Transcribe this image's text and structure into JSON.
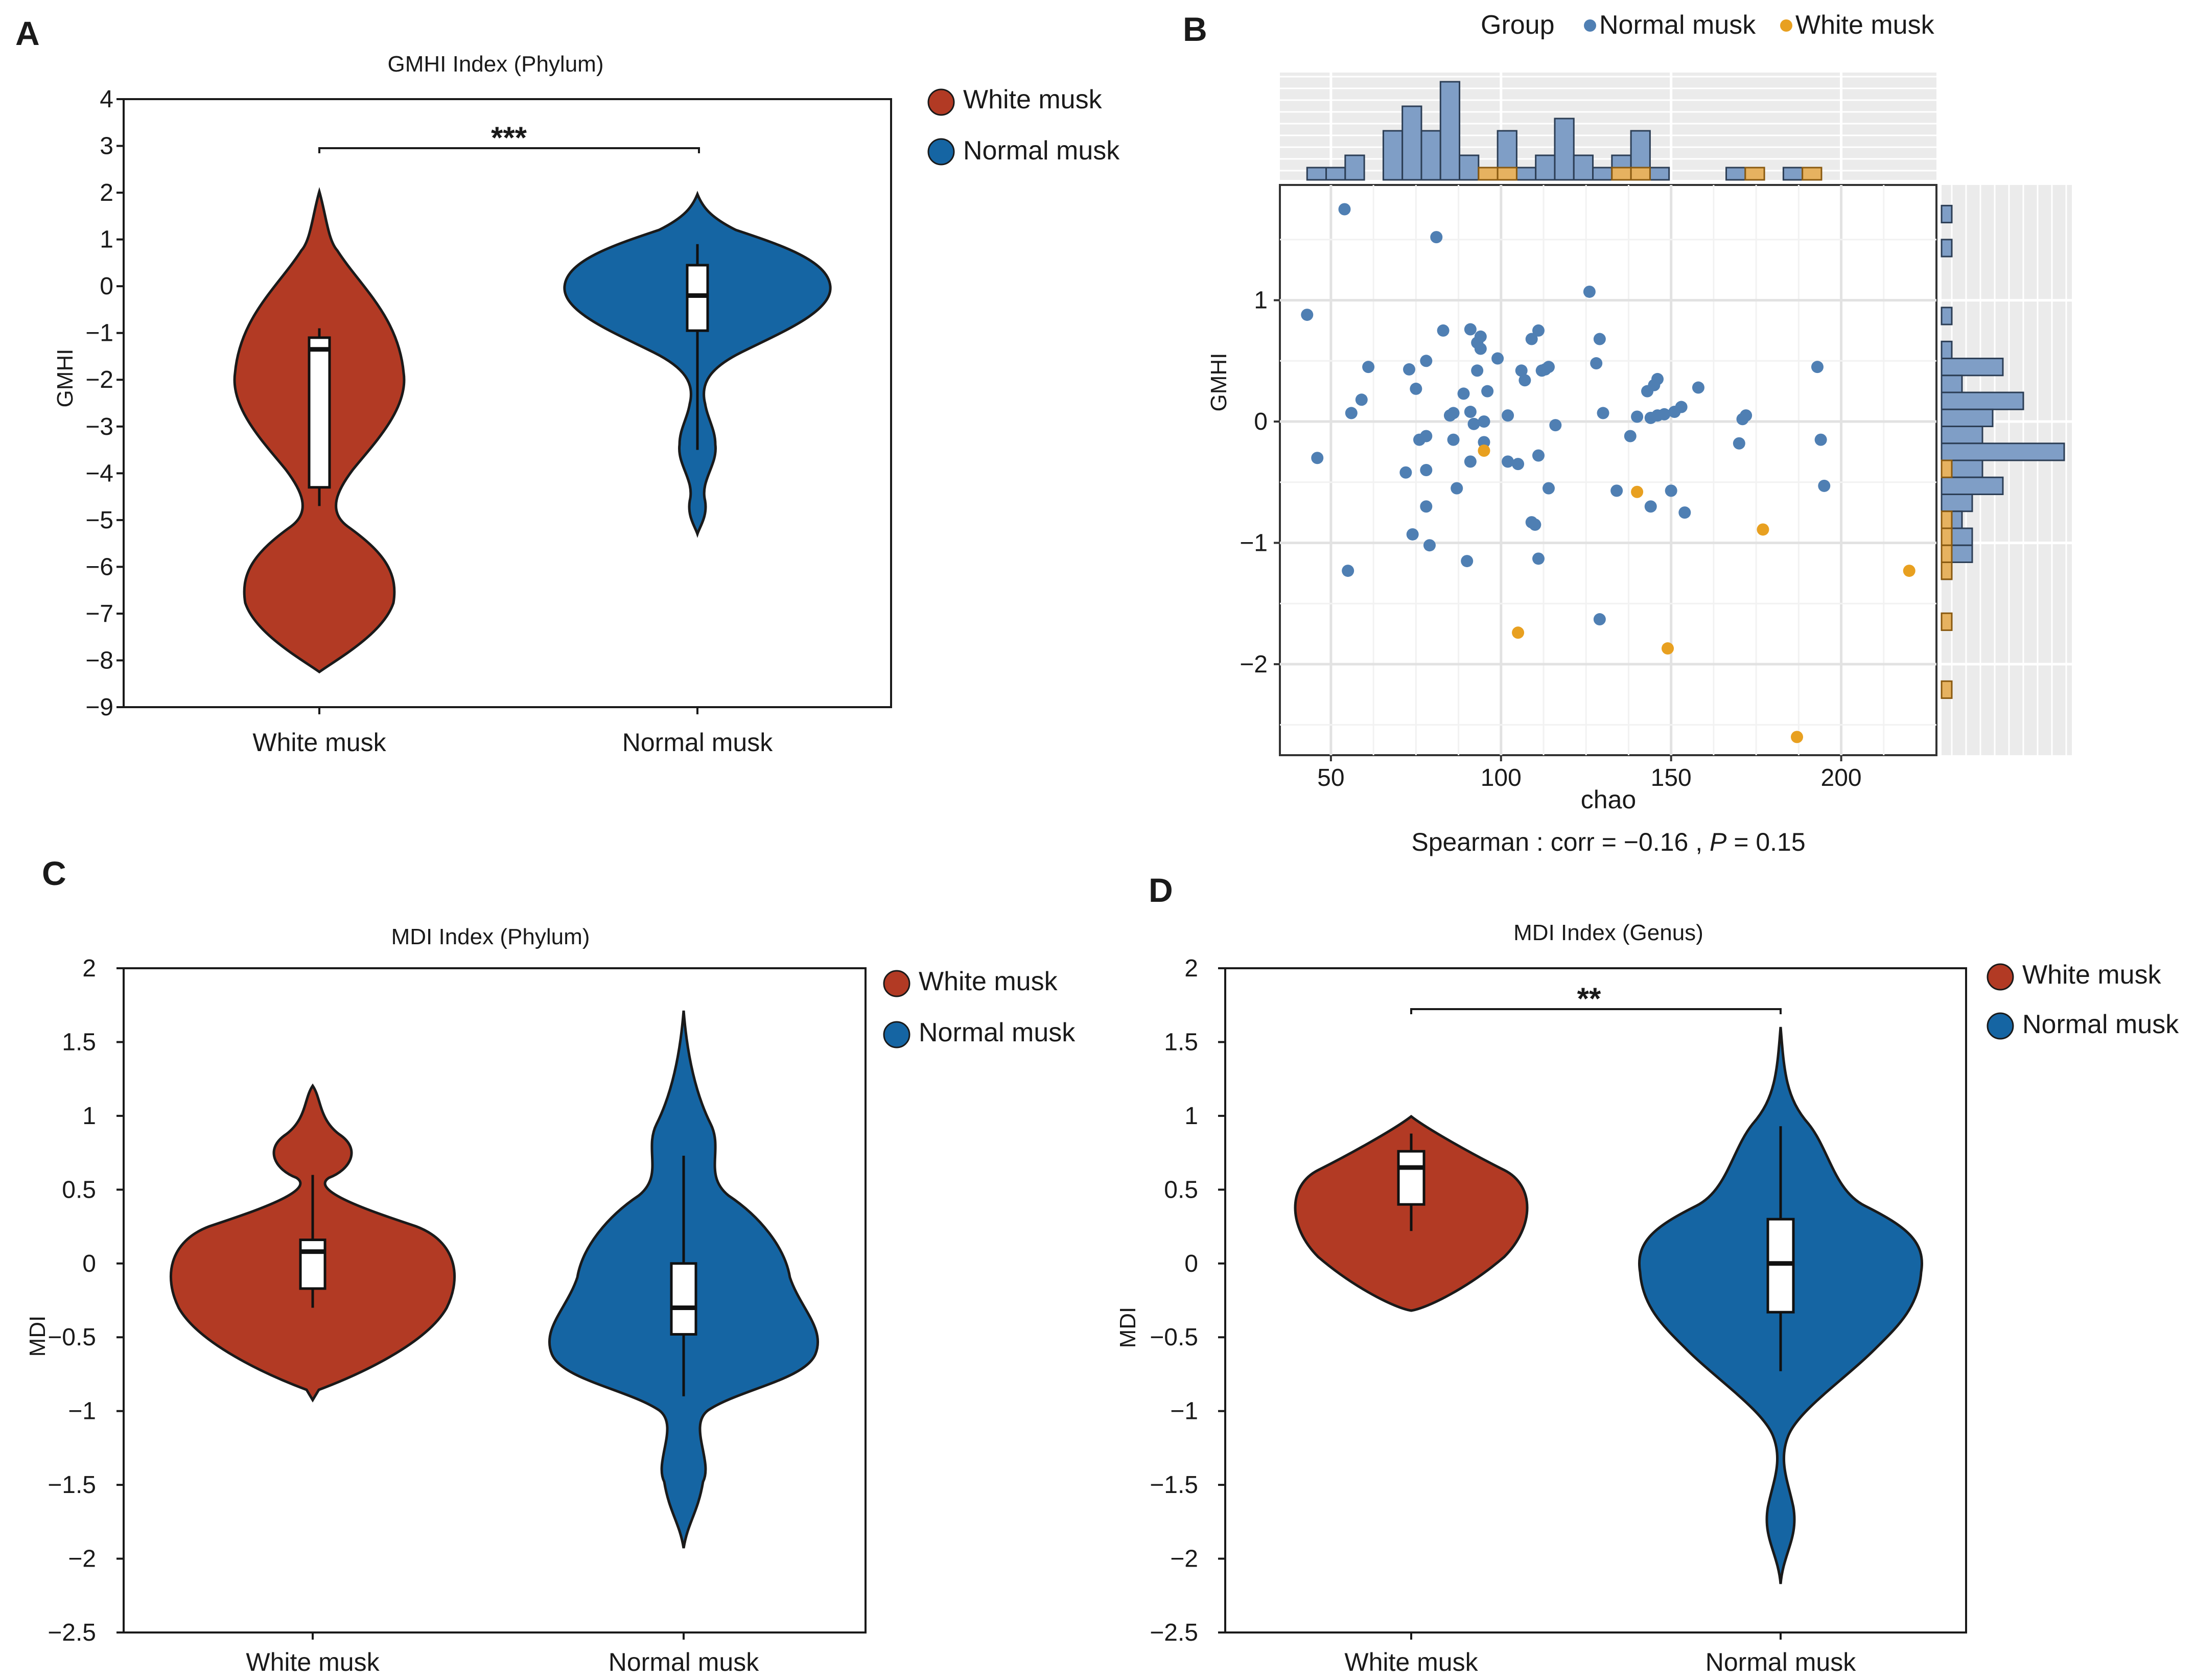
{
  "colors": {
    "white_musk": "#b23a24",
    "normal_musk": "#1565a3",
    "scatter_normal": "#4f7fb3",
    "scatter_white": "#e8a020",
    "hist_normal": "#7f9ec6",
    "hist_white": "#e6b260",
    "grid_bg": "#ebebeb"
  },
  "chart_data": [
    {
      "panel": "A",
      "type": "violin",
      "title": "GMHI Index (Phylum)",
      "ylabel": "GMHI",
      "categories": [
        "White musk",
        "Normal musk"
      ],
      "yticks": [
        4,
        3,
        2,
        1,
        0,
        -1,
        -2,
        -3,
        -4,
        -5,
        -6,
        -7,
        -8,
        -9
      ],
      "yticklabels": [
        "4",
        "3",
        "2",
        "1",
        "0",
        "−1",
        "−2",
        "−3",
        "−4",
        "−5",
        "−6",
        "−7",
        "−8",
        "−9"
      ],
      "ylim": [
        -9,
        4
      ],
      "legend": [
        "White musk",
        "Normal musk"
      ],
      "significance": "***",
      "box": [
        {
          "group": "White musk",
          "whisker_low": -4.7,
          "q1": -4.3,
          "median": -1.35,
          "q3": -1.1,
          "whisker_high": -0.9
        },
        {
          "group": "Normal musk",
          "whisker_low": -3.5,
          "q1": -0.95,
          "median": -0.2,
          "q3": 0.45,
          "whisker_high": 0.9
        }
      ]
    },
    {
      "panel": "B",
      "type": "scatter",
      "xlabel": "chao",
      "ylabel": "GMHI",
      "xticks": [
        50,
        100,
        150,
        200
      ],
      "xticklabels": [
        "50",
        "100",
        "150",
        "200"
      ],
      "yticks": [
        1,
        0,
        -1,
        -2
      ],
      "yticklabels": [
        "1",
        "0",
        "−1",
        "−2"
      ],
      "xlim": [
        35,
        228
      ],
      "ylim": [
        -2.75,
        1.95
      ],
      "legend_title": "Group",
      "legend": [
        "Normal musk",
        "White musk"
      ],
      "annotation_prefix": "Spearman : corr = −0.16 , ",
      "annotation_p": "P",
      "annotation_suffix": " = 0.15",
      "series": [
        {
          "name": "Normal musk",
          "points": [
            [
              43,
              0.88
            ],
            [
              46,
              -0.3
            ],
            [
              54,
              1.75
            ],
            [
              55,
              -1.23
            ],
            [
              56,
              0.07
            ],
            [
              59,
              0.18
            ],
            [
              61,
              0.45
            ],
            [
              72,
              -0.42
            ],
            [
              73,
              0.43
            ],
            [
              74,
              -0.93
            ],
            [
              75,
              0.27
            ],
            [
              76,
              -0.15
            ],
            [
              78,
              -0.12
            ],
            [
              78,
              0.5
            ],
            [
              78,
              -0.4
            ],
            [
              78,
              -0.7
            ],
            [
              79,
              -1.02
            ],
            [
              81,
              1.52
            ],
            [
              83,
              0.75
            ],
            [
              85,
              0.05
            ],
            [
              86,
              0.07
            ],
            [
              86,
              -0.15
            ],
            [
              87,
              -0.55
            ],
            [
              89,
              0.23
            ],
            [
              90,
              -1.15
            ],
            [
              91,
              0.08
            ],
            [
              91,
              0.76
            ],
            [
              91,
              -0.33
            ],
            [
              92,
              -0.02
            ],
            [
              93,
              0.65
            ],
            [
              93,
              0.42
            ],
            [
              94,
              0.7
            ],
            [
              94,
              0.6
            ],
            [
              95,
              0.0
            ],
            [
              95,
              -0.17
            ],
            [
              96,
              0.25
            ],
            [
              99,
              0.52
            ],
            [
              102,
              0.05
            ],
            [
              102,
              -0.33
            ],
            [
              105,
              -0.35
            ],
            [
              106,
              0.42
            ],
            [
              107,
              0.34
            ],
            [
              109,
              0.68
            ],
            [
              109,
              -0.83
            ],
            [
              110,
              -0.85
            ],
            [
              111,
              0.75
            ],
            [
              111,
              -0.28
            ],
            [
              111,
              -1.13
            ],
            [
              112,
              0.42
            ],
            [
              113,
              0.43
            ],
            [
              114,
              0.45
            ],
            [
              114,
              -0.55
            ],
            [
              116,
              -0.03
            ],
            [
              126,
              1.07
            ],
            [
              128,
              0.48
            ],
            [
              129,
              0.68
            ],
            [
              129,
              -1.63
            ],
            [
              130,
              0.07
            ],
            [
              134,
              -0.57
            ],
            [
              138,
              -0.12
            ],
            [
              140,
              0.04
            ],
            [
              143,
              0.25
            ],
            [
              144,
              0.03
            ],
            [
              144,
              -0.7
            ],
            [
              145,
              0.3
            ],
            [
              146,
              0.35
            ],
            [
              146,
              0.05
            ],
            [
              148,
              0.06
            ],
            [
              150,
              -0.57
            ],
            [
              151,
              0.08
            ],
            [
              153,
              0.12
            ],
            [
              154,
              -0.75
            ],
            [
              158,
              0.28
            ],
            [
              170,
              -0.18
            ],
            [
              171,
              0.02
            ],
            [
              172,
              0.05
            ],
            [
              193,
              0.45
            ],
            [
              194,
              -0.15
            ],
            [
              195,
              -0.53
            ]
          ]
        },
        {
          "name": "White musk",
          "points": [
            [
              95,
              -0.24
            ],
            [
              105,
              -1.74
            ],
            [
              140,
              -0.58
            ],
            [
              149,
              -1.87
            ],
            [
              177,
              -0.89
            ],
            [
              187,
              -2.6
            ],
            [
              220,
              -1.23
            ]
          ]
        }
      ],
      "top_histogram": {
        "bin_width": 5.6,
        "bins_start": 43,
        "normal_counts": [
          1,
          1,
          2,
          0,
          4,
          6,
          4,
          8,
          2,
          1,
          4,
          1,
          2,
          5,
          2,
          1,
          2,
          4,
          1,
          0,
          0,
          0,
          1,
          0,
          0,
          1,
          0,
          0,
          0,
          0
        ],
        "white_counts": [
          0,
          0,
          0,
          0,
          0,
          0,
          0,
          0,
          0,
          1,
          1,
          0,
          0,
          0,
          0,
          0,
          1,
          1,
          0,
          0,
          0,
          0,
          0,
          1,
          0,
          0,
          1,
          0,
          0,
          0
        ]
      },
      "right_histogram": {
        "bin_height": 0.14,
        "bins_top": 1.78,
        "normal_counts": [
          1,
          0,
          1,
          0,
          0,
          0,
          1,
          0,
          1,
          6,
          2,
          8,
          5,
          4,
          12,
          4,
          6,
          3,
          2,
          3,
          3,
          1,
          0,
          0,
          0,
          0,
          0,
          0,
          0
        ],
        "white_counts": [
          0,
          0,
          0,
          0,
          0,
          0,
          0,
          0,
          0,
          0,
          0,
          0,
          0,
          0,
          0,
          1,
          0,
          0,
          1,
          1,
          1,
          1,
          0,
          0,
          1,
          0,
          0,
          0,
          1
        ]
      }
    },
    {
      "panel": "C",
      "type": "violin",
      "title": "MDI Index (Phylum)",
      "ylabel": "MDI",
      "categories": [
        "White musk",
        "Normal musk"
      ],
      "yticks": [
        2,
        1.5,
        1,
        0.5,
        0,
        -0.5,
        -1,
        -1.5,
        -2,
        -2.5
      ],
      "yticklabels": [
        "2",
        "1.5",
        "1",
        "0.5",
        "0",
        "−0.5",
        "−1",
        "−1.5",
        "−2",
        "−2.5"
      ],
      "ylim": [
        -2.5,
        2
      ],
      "legend": [
        "White musk",
        "Normal musk"
      ],
      "significance": "",
      "box": [
        {
          "group": "White musk",
          "whisker_low": -0.3,
          "q1": -0.17,
          "median": 0.08,
          "q3": 0.16,
          "whisker_high": 0.6
        },
        {
          "group": "Normal musk",
          "whisker_low": -0.9,
          "q1": -0.48,
          "median": -0.3,
          "q3": 0.0,
          "whisker_high": 0.73
        }
      ]
    },
    {
      "panel": "D",
      "type": "violin",
      "title": "MDI Index (Genus)",
      "ylabel": "MDI",
      "categories": [
        "White musk",
        "Normal musk"
      ],
      "yticks": [
        2,
        1.5,
        1,
        0.5,
        0,
        -0.5,
        -1,
        -1.5,
        -2,
        -2.5
      ],
      "yticklabels": [
        "2",
        "1.5",
        "1",
        "0.5",
        "0",
        "−0.5",
        "−1",
        "−1.5",
        "−2",
        "−2.5"
      ],
      "ylim": [
        -2.5,
        2
      ],
      "legend": [
        "White musk",
        "Normal musk"
      ],
      "significance": "**",
      "box": [
        {
          "group": "White musk",
          "whisker_low": 0.22,
          "q1": 0.4,
          "median": 0.65,
          "q3": 0.76,
          "whisker_high": 0.88
        },
        {
          "group": "Normal musk",
          "whisker_low": -0.73,
          "q1": -0.33,
          "median": 0.0,
          "q3": 0.3,
          "whisker_high": 0.93
        }
      ]
    }
  ]
}
